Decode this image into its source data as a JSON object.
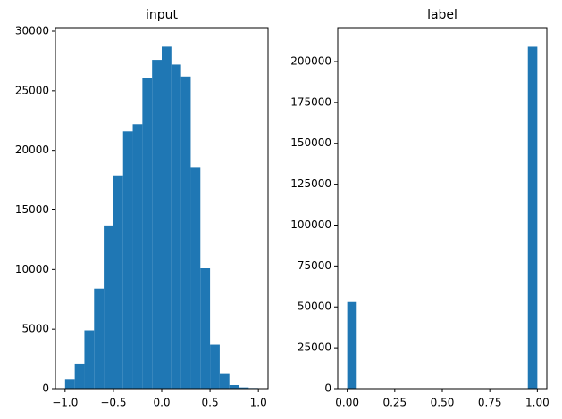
{
  "chart_data": [
    {
      "type": "histogram",
      "title": "input",
      "color": "#1f77b4",
      "bins": [
        -1.0,
        -0.9,
        -0.8,
        -0.7,
        -0.6,
        -0.5,
        -0.4,
        -0.3,
        -0.2,
        -0.1,
        0.0,
        0.1,
        0.2,
        0.3,
        0.4,
        0.5,
        0.6,
        0.7,
        0.8,
        0.9,
        1.0
      ],
      "values": [
        800,
        2100,
        4900,
        8400,
        13700,
        17900,
        21600,
        22200,
        26100,
        27600,
        28700,
        27200,
        26200,
        18600,
        10100,
        3700,
        1300,
        300,
        100,
        50
      ],
      "xlim": [
        -1.1,
        1.1
      ],
      "ylim": [
        0,
        30300
      ],
      "xticks": [
        {
          "value": -1.0,
          "label": "−1.0"
        },
        {
          "value": -0.5,
          "label": "−0.5"
        },
        {
          "value": 0.0,
          "label": "0.0"
        },
        {
          "value": 0.5,
          "label": "0.5"
        },
        {
          "value": 1.0,
          "label": "1.0"
        }
      ],
      "yticks": [
        0,
        5000,
        10000,
        15000,
        20000,
        25000,
        30000
      ]
    },
    {
      "type": "histogram",
      "title": "label",
      "color": "#1f77b4",
      "bins": [
        0.0,
        0.05,
        0.1,
        0.15,
        0.2,
        0.25,
        0.3,
        0.35,
        0.4,
        0.45,
        0.5,
        0.55,
        0.6,
        0.65,
        0.7,
        0.75,
        0.8,
        0.85,
        0.9,
        0.95,
        1.0
      ],
      "values": [
        53000,
        0,
        0,
        0,
        0,
        0,
        0,
        0,
        0,
        0,
        0,
        0,
        0,
        0,
        0,
        0,
        0,
        0,
        0,
        209000
      ],
      "xlim": [
        -0.05,
        1.05
      ],
      "ylim": [
        0,
        220700
      ],
      "xticks": [
        {
          "value": 0.0,
          "label": "0.00"
        },
        {
          "value": 0.25,
          "label": "0.25"
        },
        {
          "value": 0.5,
          "label": "0.50"
        },
        {
          "value": 0.75,
          "label": "0.75"
        },
        {
          "value": 1.0,
          "label": "1.00"
        }
      ],
      "yticks": [
        0,
        25000,
        50000,
        75000,
        100000,
        125000,
        150000,
        175000,
        200000
      ]
    }
  ]
}
